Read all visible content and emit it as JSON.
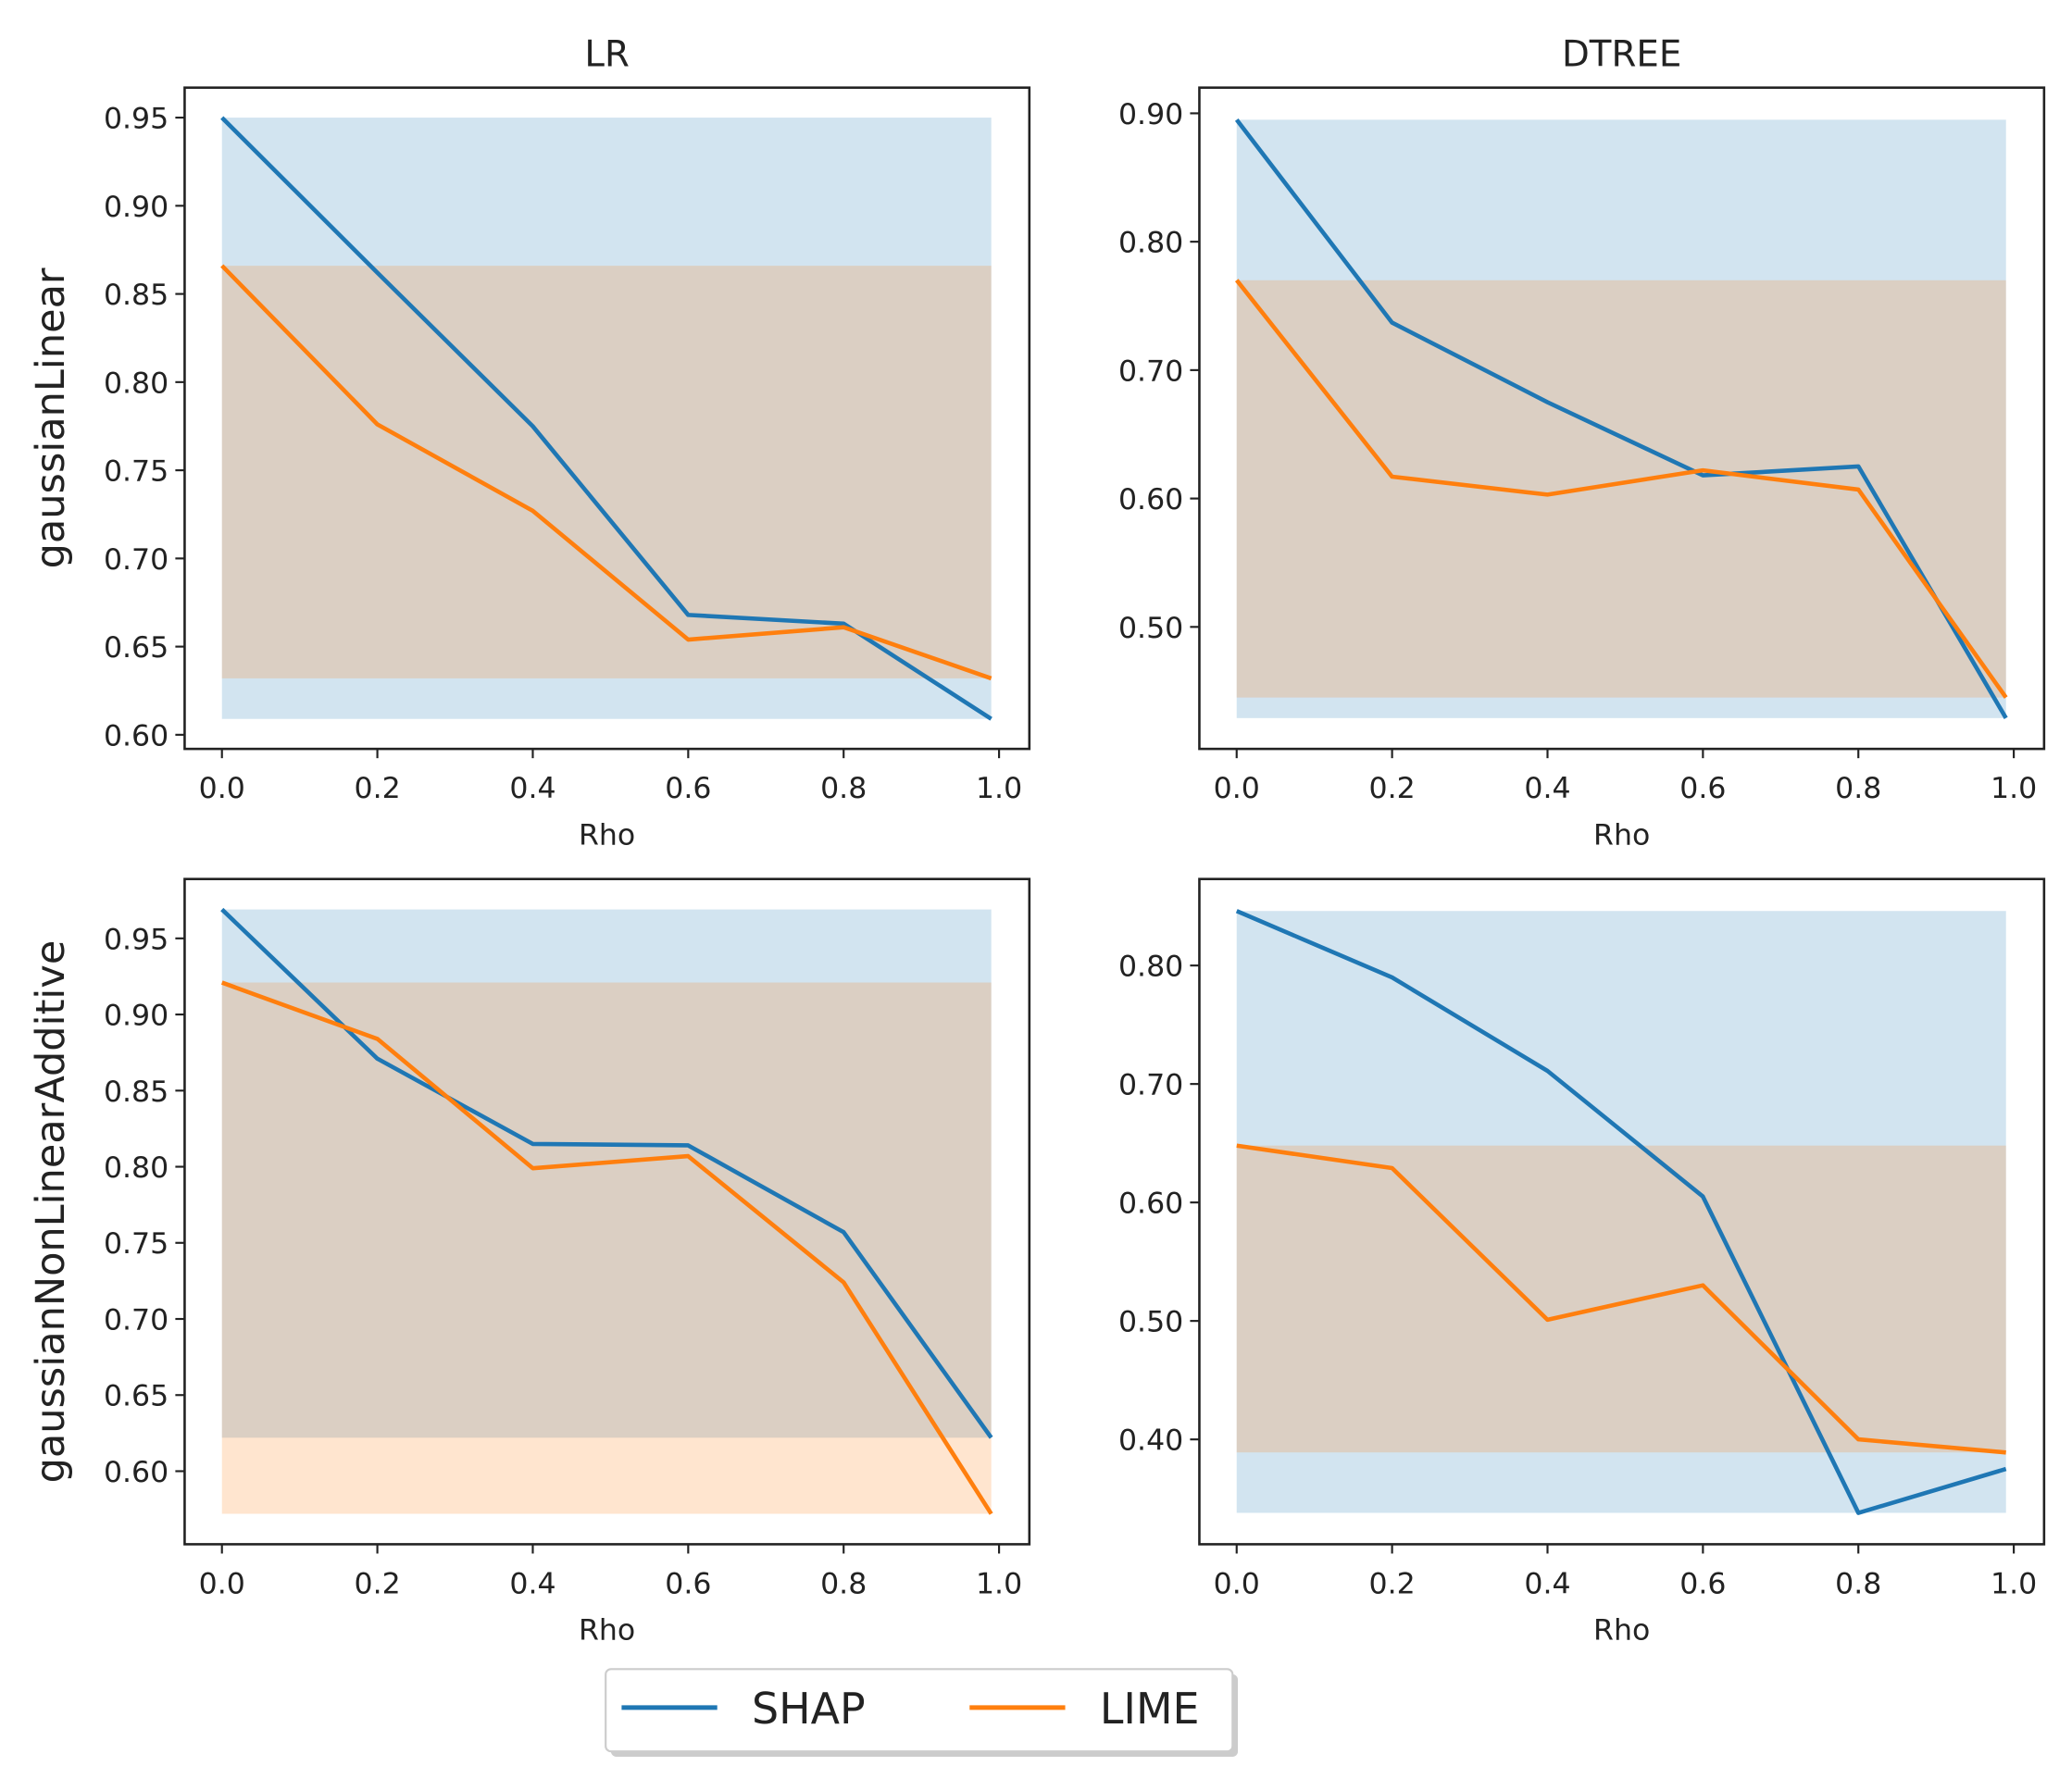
{
  "chart_data": [
    {
      "type": "line",
      "title": "LR",
      "xlabel": "Rho",
      "ylabel": "gaussianLinear",
      "x": [
        0.0,
        0.2,
        0.4,
        0.6,
        0.8,
        0.99
      ],
      "xlim": [
        -0.048,
        1.039
      ],
      "ylim": [
        0.592,
        0.967
      ],
      "xticks": [
        0.0,
        0.2,
        0.4,
        0.6,
        0.8,
        1.0
      ],
      "yticks": [
        0.6,
        0.65,
        0.7,
        0.75,
        0.8,
        0.85,
        0.9,
        0.95
      ],
      "ytick_decimals": 2,
      "series": [
        {
          "name": "SHAP",
          "values": [
            0.95,
            0.862,
            0.775,
            0.668,
            0.663,
            0.609
          ],
          "band": [
            0.609,
            0.95
          ]
        },
        {
          "name": "LIME",
          "values": [
            0.866,
            0.776,
            0.727,
            0.654,
            0.661,
            0.632
          ],
          "band": [
            0.632,
            0.866
          ]
        }
      ]
    },
    {
      "type": "line",
      "title": "DTREE",
      "xlabel": "Rho",
      "ylabel": "",
      "x": [
        0.0,
        0.2,
        0.4,
        0.6,
        0.8,
        0.99
      ],
      "xlim": [
        -0.048,
        1.039
      ],
      "ylim": [
        0.405,
        0.92
      ],
      "xticks": [
        0.0,
        0.2,
        0.4,
        0.6,
        0.8,
        1.0
      ],
      "yticks": [
        0.5,
        0.6,
        0.7,
        0.8,
        0.9
      ],
      "ytick_decimals": 2,
      "series": [
        {
          "name": "SHAP",
          "values": [
            0.895,
            0.737,
            0.675,
            0.618,
            0.625,
            0.429
          ],
          "band": [
            0.429,
            0.895
          ]
        },
        {
          "name": "LIME",
          "values": [
            0.77,
            0.617,
            0.603,
            0.622,
            0.607,
            0.445
          ],
          "band": [
            0.445,
            0.77
          ]
        }
      ]
    },
    {
      "type": "line",
      "title": "",
      "xlabel": "Rho",
      "ylabel": "gaussianNonLinearAdditive",
      "x": [
        0.0,
        0.2,
        0.4,
        0.6,
        0.8,
        0.99
      ],
      "xlim": [
        -0.048,
        1.039
      ],
      "ylim": [
        0.552,
        0.989
      ],
      "xticks": [
        0.0,
        0.2,
        0.4,
        0.6,
        0.8,
        1.0
      ],
      "yticks": [
        0.6,
        0.65,
        0.7,
        0.75,
        0.8,
        0.85,
        0.9,
        0.95
      ],
      "ytick_decimals": 2,
      "series": [
        {
          "name": "SHAP",
          "values": [
            0.969,
            0.871,
            0.815,
            0.814,
            0.757,
            0.622
          ],
          "band": [
            0.622,
            0.969
          ]
        },
        {
          "name": "LIME",
          "values": [
            0.921,
            0.884,
            0.799,
            0.807,
            0.724,
            0.572
          ],
          "band": [
            0.572,
            0.921
          ]
        }
      ]
    },
    {
      "type": "line",
      "title": "",
      "xlabel": "Rho",
      "ylabel": "",
      "x": [
        0.0,
        0.2,
        0.4,
        0.6,
        0.8,
        0.99
      ],
      "xlim": [
        -0.048,
        1.039
      ],
      "ylim": [
        0.3115,
        0.873
      ],
      "xticks": [
        0.0,
        0.2,
        0.4,
        0.6,
        0.8,
        1.0
      ],
      "yticks": [
        0.4,
        0.5,
        0.6,
        0.7,
        0.8
      ],
      "ytick_decimals": 2,
      "series": [
        {
          "name": "SHAP",
          "values": [
            0.846,
            0.79,
            0.711,
            0.605,
            0.338,
            0.375
          ],
          "band": [
            0.338,
            0.846
          ]
        },
        {
          "name": "LIME",
          "values": [
            0.648,
            0.629,
            0.501,
            0.53,
            0.4,
            0.389
          ],
          "band": [
            0.389,
            0.648
          ]
        }
      ]
    }
  ],
  "legend": {
    "placement": "bottom-center",
    "entries": [
      "SHAP",
      "LIME"
    ]
  },
  "colors": {
    "SHAP": "#1f77b4",
    "LIME": "#ff7f0e"
  }
}
